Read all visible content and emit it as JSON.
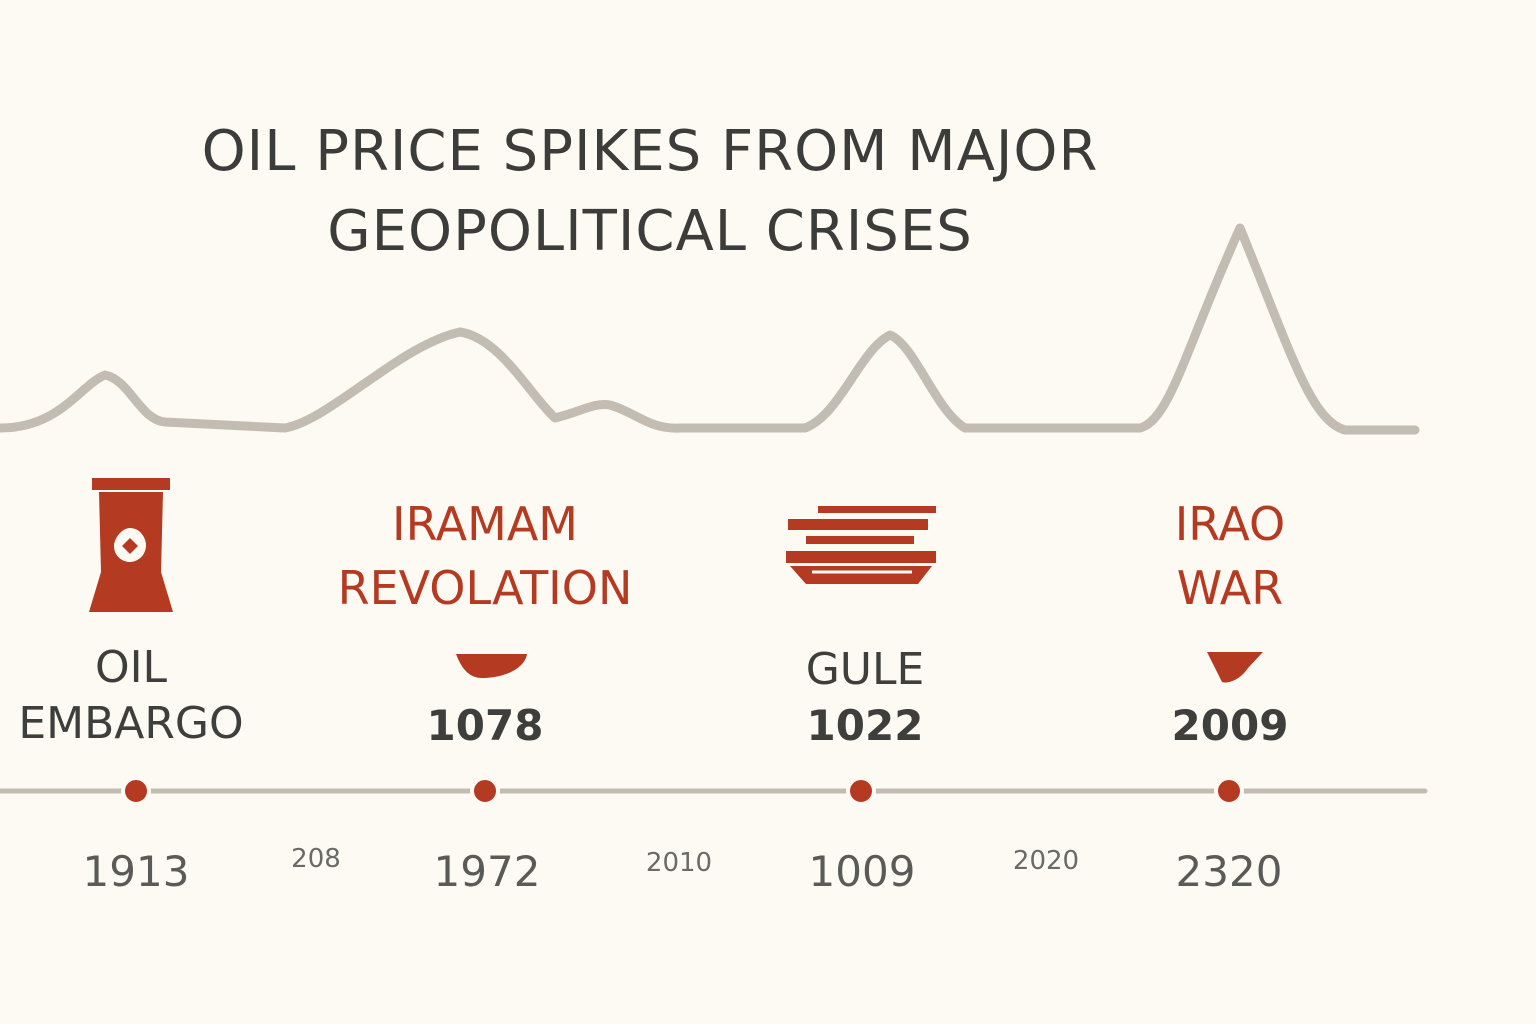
{
  "title": {
    "line1": "OIL PRICE SPIKES FROM MAJOR",
    "line2": "GEOPOLITICAL CRISES"
  },
  "events": [
    {
      "icon": "oil-barrel-icon",
      "name_line1": "OIL",
      "name_line2": "EMBARGO",
      "axis_year": "1913"
    },
    {
      "heading_line1": "IRAMAM",
      "heading_line2": "REVOLATION",
      "icon": "arrow-marker-icon",
      "year": "1078",
      "axis_year": "1972"
    },
    {
      "icon": "ship-icon",
      "name_line1": "GULE",
      "year": "1022",
      "axis_year": "1009"
    },
    {
      "heading_line1": "IRAO",
      "heading_line2": "WAR",
      "icon": "arrow-marker-icon",
      "year": "2009",
      "axis_year": "2320"
    }
  ],
  "axis_minor_ticks": [
    "208",
    "2010",
    "2020"
  ],
  "colors": {
    "background": "#fcfaf3",
    "accent_red": "#b43a22",
    "line_grey": "#c2bcb2",
    "text_dark": "#3e3e3c"
  }
}
